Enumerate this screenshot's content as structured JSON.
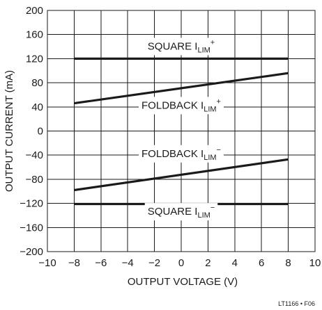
{
  "chart_data": {
    "type": "line",
    "title": "",
    "xlabel": "OUTPUT VOLTAGE (V)",
    "ylabel": "OUTPUT CURRENT (mA)",
    "xlim": [
      -10,
      10
    ],
    "ylim": [
      -200,
      200
    ],
    "x_ticks": [
      -10,
      -8,
      -6,
      -4,
      -2,
      0,
      2,
      4,
      6,
      8,
      10
    ],
    "y_ticks": [
      200,
      160,
      120,
      80,
      40,
      0,
      -40,
      -80,
      -120,
      -160,
      -200
    ],
    "x_tick_labels": [
      "−10",
      "−8",
      "−6",
      "−4",
      "−2",
      "0",
      "2",
      "4",
      "6",
      "8",
      "10"
    ],
    "y_tick_labels": [
      "200",
      "160",
      "120",
      "80",
      "40",
      "0",
      "−40",
      "−80",
      "−120",
      "−160",
      "−200"
    ],
    "grid": true,
    "series": [
      {
        "label": "SQUARE",
        "label_sub": "LIM",
        "label_sup": "+",
        "x": [
          -8,
          8
        ],
        "y": [
          120,
          120
        ]
      },
      {
        "label": "FOLDBACK",
        "label_sub": "LIM",
        "label_sup": "+",
        "x": [
          -8,
          8
        ],
        "y": [
          46,
          96
        ]
      },
      {
        "label": "FOLDBACK",
        "label_sub": "LIM",
        "label_sup": "−",
        "x": [
          -8,
          8
        ],
        "y": [
          -98,
          -47
        ]
      },
      {
        "label": "SQUARE",
        "label_sub": "LIM",
        "label_sup": "−",
        "x": [
          -8,
          8
        ],
        "y": [
          -121,
          -121
        ]
      }
    ],
    "figure_id": "LT1166 • F06"
  }
}
